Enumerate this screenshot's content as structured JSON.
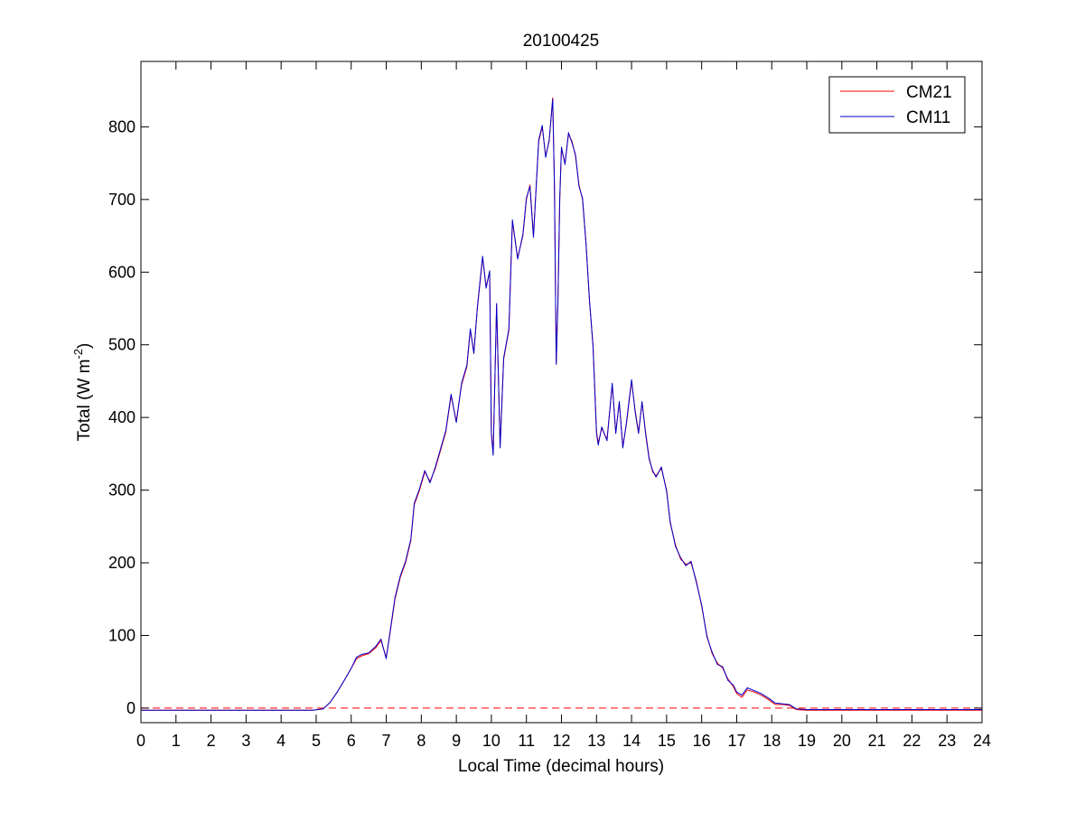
{
  "chart_data": {
    "type": "line",
    "title": "20100425",
    "xlabel": "Local Time (decimal hours)",
    "ylabel": {
      "prefix": "Total (W m",
      "superscript": "-2",
      "suffix": ")"
    },
    "xlim": [
      0,
      24
    ],
    "ylim": [
      -20,
      890
    ],
    "xticks": [
      0,
      1,
      2,
      3,
      4,
      5,
      6,
      7,
      8,
      9,
      10,
      11,
      12,
      13,
      14,
      15,
      16,
      17,
      18,
      19,
      20,
      21,
      22,
      23,
      24
    ],
    "yticks": [
      0,
      100,
      200,
      300,
      400,
      500,
      600,
      700,
      800
    ],
    "grid": false,
    "legend_position": "top-right",
    "reference_line": {
      "y": 0,
      "style": "dashed",
      "color": "#ff0000"
    },
    "series": [
      {
        "name": "CM21",
        "color": "#ff0000",
        "points": [
          [
            0,
            -3
          ],
          [
            1,
            -3
          ],
          [
            2,
            -3
          ],
          [
            3,
            -3
          ],
          [
            4,
            -3
          ],
          [
            4.9,
            -3
          ],
          [
            5.2,
            -1
          ],
          [
            5.4,
            8
          ],
          [
            5.6,
            22
          ],
          [
            5.8,
            38
          ],
          [
            6.0,
            55
          ],
          [
            6.15,
            68
          ],
          [
            6.3,
            72
          ],
          [
            6.5,
            75
          ],
          [
            6.7,
            83
          ],
          [
            6.85,
            93
          ],
          [
            7.0,
            70
          ],
          [
            7.1,
            100
          ],
          [
            7.25,
            150
          ],
          [
            7.4,
            180
          ],
          [
            7.55,
            200
          ],
          [
            7.7,
            230
          ],
          [
            7.8,
            280
          ],
          [
            7.95,
            300
          ],
          [
            8.1,
            325
          ],
          [
            8.25,
            312
          ],
          [
            8.4,
            330
          ],
          [
            8.55,
            355
          ],
          [
            8.7,
            380
          ],
          [
            8.85,
            430
          ],
          [
            9.0,
            395
          ],
          [
            9.15,
            445
          ],
          [
            9.3,
            470
          ],
          [
            9.4,
            520
          ],
          [
            9.5,
            490
          ],
          [
            9.6,
            550
          ],
          [
            9.75,
            620
          ],
          [
            9.85,
            580
          ],
          [
            9.95,
            600
          ],
          [
            10.0,
            380
          ],
          [
            10.05,
            350
          ],
          [
            10.15,
            555
          ],
          [
            10.25,
            360
          ],
          [
            10.35,
            480
          ],
          [
            10.5,
            520
          ],
          [
            10.6,
            670
          ],
          [
            10.75,
            620
          ],
          [
            10.9,
            650
          ],
          [
            11.0,
            700
          ],
          [
            11.1,
            720
          ],
          [
            11.2,
            650
          ],
          [
            11.35,
            780
          ],
          [
            11.45,
            800
          ],
          [
            11.55,
            760
          ],
          [
            11.65,
            780
          ],
          [
            11.75,
            840
          ],
          [
            11.8,
            720
          ],
          [
            11.85,
            475
          ],
          [
            11.9,
            560
          ],
          [
            11.95,
            700
          ],
          [
            12.0,
            770
          ],
          [
            12.1,
            750
          ],
          [
            12.2,
            790
          ],
          [
            12.3,
            780
          ],
          [
            12.4,
            760
          ],
          [
            12.5,
            720
          ],
          [
            12.6,
            700
          ],
          [
            12.7,
            640
          ],
          [
            12.8,
            560
          ],
          [
            12.9,
            500
          ],
          [
            13.0,
            380
          ],
          [
            13.05,
            365
          ],
          [
            13.15,
            385
          ],
          [
            13.3,
            370
          ],
          [
            13.45,
            445
          ],
          [
            13.55,
            380
          ],
          [
            13.65,
            420
          ],
          [
            13.75,
            360
          ],
          [
            13.85,
            390
          ],
          [
            14.0,
            450
          ],
          [
            14.1,
            410
          ],
          [
            14.2,
            380
          ],
          [
            14.3,
            420
          ],
          [
            14.4,
            380
          ],
          [
            14.5,
            345
          ],
          [
            14.6,
            325
          ],
          [
            14.7,
            320
          ],
          [
            14.85,
            330
          ],
          [
            15.0,
            300
          ],
          [
            15.1,
            255
          ],
          [
            15.25,
            225
          ],
          [
            15.4,
            205
          ],
          [
            15.55,
            198
          ],
          [
            15.7,
            200
          ],
          [
            15.85,
            175
          ],
          [
            16.0,
            140
          ],
          [
            16.15,
            100
          ],
          [
            16.3,
            75
          ],
          [
            16.45,
            62
          ],
          [
            16.6,
            55
          ],
          [
            16.75,
            40
          ],
          [
            16.9,
            30
          ],
          [
            17.0,
            20
          ],
          [
            17.15,
            15
          ],
          [
            17.3,
            25
          ],
          [
            17.5,
            22
          ],
          [
            17.7,
            18
          ],
          [
            17.9,
            12
          ],
          [
            18.1,
            5
          ],
          [
            18.3,
            5
          ],
          [
            18.5,
            4
          ],
          [
            18.7,
            -2
          ],
          [
            19.0,
            -3
          ],
          [
            20,
            -3
          ],
          [
            21,
            -3
          ],
          [
            22,
            -3
          ],
          [
            23,
            -3
          ],
          [
            24,
            -3
          ]
        ]
      },
      {
        "name": "CM11",
        "color": "#0000cc",
        "points": [
          [
            0,
            -3
          ],
          [
            1,
            -3
          ],
          [
            2,
            -3
          ],
          [
            3,
            -3
          ],
          [
            4,
            -3
          ],
          [
            4.9,
            -3
          ],
          [
            5.2,
            -1
          ],
          [
            5.4,
            8
          ],
          [
            5.6,
            22
          ],
          [
            5.8,
            38
          ],
          [
            6.0,
            55
          ],
          [
            6.15,
            70
          ],
          [
            6.3,
            74
          ],
          [
            6.5,
            76
          ],
          [
            6.7,
            85
          ],
          [
            6.85,
            95
          ],
          [
            7.0,
            68
          ],
          [
            7.1,
            102
          ],
          [
            7.25,
            152
          ],
          [
            7.4,
            182
          ],
          [
            7.55,
            202
          ],
          [
            7.7,
            232
          ],
          [
            7.8,
            282
          ],
          [
            7.95,
            302
          ],
          [
            8.1,
            327
          ],
          [
            8.25,
            310
          ],
          [
            8.4,
            332
          ],
          [
            8.55,
            357
          ],
          [
            8.7,
            382
          ],
          [
            8.85,
            432
          ],
          [
            9.0,
            393
          ],
          [
            9.15,
            447
          ],
          [
            9.3,
            472
          ],
          [
            9.4,
            522
          ],
          [
            9.5,
            488
          ],
          [
            9.6,
            552
          ],
          [
            9.75,
            622
          ],
          [
            9.85,
            578
          ],
          [
            9.95,
            602
          ],
          [
            10.0,
            378
          ],
          [
            10.05,
            348
          ],
          [
            10.15,
            557
          ],
          [
            10.25,
            358
          ],
          [
            10.35,
            482
          ],
          [
            10.5,
            522
          ],
          [
            10.6,
            672
          ],
          [
            10.75,
            618
          ],
          [
            10.9,
            652
          ],
          [
            11.0,
            702
          ],
          [
            11.1,
            718
          ],
          [
            11.2,
            648
          ],
          [
            11.35,
            782
          ],
          [
            11.45,
            802
          ],
          [
            11.55,
            758
          ],
          [
            11.65,
            782
          ],
          [
            11.75,
            838
          ],
          [
            11.8,
            718
          ],
          [
            11.85,
            473
          ],
          [
            11.9,
            562
          ],
          [
            11.95,
            702
          ],
          [
            12.0,
            772
          ],
          [
            12.1,
            748
          ],
          [
            12.2,
            792
          ],
          [
            12.3,
            778
          ],
          [
            12.4,
            762
          ],
          [
            12.5,
            718
          ],
          [
            12.6,
            702
          ],
          [
            12.7,
            638
          ],
          [
            12.8,
            562
          ],
          [
            12.9,
            498
          ],
          [
            13.0,
            378
          ],
          [
            13.05,
            362
          ],
          [
            13.15,
            387
          ],
          [
            13.3,
            368
          ],
          [
            13.45,
            447
          ],
          [
            13.55,
            378
          ],
          [
            13.65,
            422
          ],
          [
            13.75,
            358
          ],
          [
            13.85,
            392
          ],
          [
            14.0,
            452
          ],
          [
            14.1,
            408
          ],
          [
            14.2,
            378
          ],
          [
            14.3,
            422
          ],
          [
            14.4,
            378
          ],
          [
            14.5,
            343
          ],
          [
            14.6,
            327
          ],
          [
            14.7,
            318
          ],
          [
            14.85,
            332
          ],
          [
            15.0,
            298
          ],
          [
            15.1,
            257
          ],
          [
            15.25,
            223
          ],
          [
            15.4,
            207
          ],
          [
            15.55,
            196
          ],
          [
            15.7,
            202
          ],
          [
            15.85,
            173
          ],
          [
            16.0,
            142
          ],
          [
            16.15,
            98
          ],
          [
            16.3,
            77
          ],
          [
            16.45,
            60
          ],
          [
            16.6,
            57
          ],
          [
            16.75,
            38
          ],
          [
            16.9,
            32
          ],
          [
            17.0,
            22
          ],
          [
            17.15,
            18
          ],
          [
            17.3,
            28
          ],
          [
            17.5,
            24
          ],
          [
            17.7,
            20
          ],
          [
            17.9,
            14
          ],
          [
            18.1,
            7
          ],
          [
            18.3,
            6
          ],
          [
            18.5,
            5
          ],
          [
            18.7,
            -1
          ],
          [
            19.0,
            -2
          ],
          [
            20,
            -2
          ],
          [
            21,
            -2
          ],
          [
            22,
            -2
          ],
          [
            23,
            -2
          ],
          [
            24,
            -2
          ]
        ]
      }
    ]
  }
}
